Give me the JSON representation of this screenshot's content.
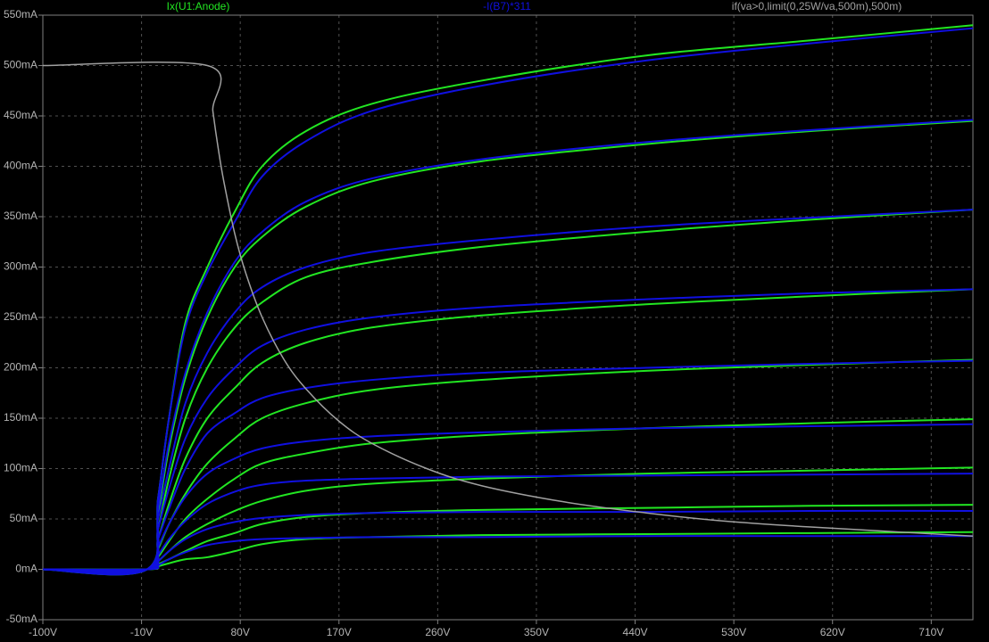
{
  "chart_data": {
    "type": "line",
    "x": [
      -100,
      -5,
      5,
      15,
      30,
      50,
      75,
      100,
      140,
      200,
      300,
      450,
      600,
      748
    ],
    "series": [
      {
        "name": "Ix(U1:Anode)",
        "color": "#22e622",
        "curves": [
          [
            0,
            0,
            70,
            150,
            245,
            300,
            355,
            400,
            435,
            462,
            485,
            510,
            525,
            540
          ],
          [
            0,
            0,
            55,
            120,
            190,
            250,
            300,
            330,
            360,
            385,
            405,
            422,
            435,
            445
          ],
          [
            0,
            0,
            40,
            90,
            150,
            200,
            240,
            265,
            290,
            305,
            320,
            335,
            347,
            357
          ],
          [
            0,
            0,
            30,
            65,
            110,
            150,
            180,
            205,
            225,
            240,
            252,
            263,
            271,
            278
          ],
          [
            0,
            0,
            20,
            45,
            75,
            105,
            130,
            150,
            165,
            178,
            188,
            197,
            203,
            208
          ],
          [
            0,
            0,
            12,
            28,
            50,
            70,
            90,
            105,
            115,
            125,
            133,
            140,
            145,
            149
          ],
          [
            0,
            0,
            8,
            18,
            32,
            45,
            58,
            68,
            78,
            85,
            90,
            95,
            98,
            101
          ],
          [
            0,
            0,
            5,
            10,
            18,
            28,
            36,
            45,
            52,
            56,
            59,
            61,
            63,
            64
          ],
          [
            0,
            0,
            3,
            6,
            10,
            12,
            18,
            25,
            30,
            32,
            34,
            35,
            36,
            37
          ]
        ]
      },
      {
        "name": "-I(B7)*311",
        "color": "#1010e0",
        "curves": [
          [
            0,
            0,
            70,
            150,
            240,
            295,
            345,
            390,
            425,
            455,
            480,
            505,
            522,
            537
          ],
          [
            0,
            0,
            60,
            125,
            195,
            255,
            305,
            335,
            365,
            388,
            407,
            424,
            436,
            446
          ],
          [
            0,
            0,
            50,
            100,
            165,
            215,
            255,
            280,
            300,
            315,
            327,
            340,
            349,
            357
          ],
          [
            0,
            0,
            40,
            80,
            130,
            170,
            200,
            222,
            238,
            250,
            260,
            268,
            274,
            278
          ],
          [
            0,
            0,
            30,
            60,
            100,
            135,
            155,
            170,
            180,
            188,
            195,
            200,
            204,
            207
          ],
          [
            0,
            0,
            22,
            45,
            72,
            95,
            110,
            120,
            127,
            132,
            136,
            140,
            142,
            144
          ],
          [
            0,
            0,
            14,
            30,
            48,
            65,
            77,
            84,
            88,
            90,
            92,
            93,
            94,
            95
          ],
          [
            0,
            0,
            8,
            18,
            30,
            40,
            47,
            51,
            54,
            56,
            57,
            57,
            58,
            58
          ],
          [
            0,
            0,
            4,
            10,
            17,
            24,
            28,
            30,
            31,
            32,
            32,
            33,
            33,
            33
          ]
        ]
      },
      {
        "name": "if(va>0,limit(0,25W/va,500m),500m)",
        "color": "#a0a0a0",
        "x": [
          -100,
          50,
          55,
          60,
          65,
          75,
          85,
          100,
          120,
          140,
          170,
          200,
          250,
          300,
          375,
          450,
          520,
          600,
          748
        ],
        "values": [
          500,
          500,
          455,
          417,
          385,
          333,
          294,
          250,
          208,
          179,
          147,
          125,
          100,
          83,
          67,
          56,
          48,
          42,
          33
        ]
      }
    ],
    "xlim": [
      -100,
      748
    ],
    "ylim": [
      -50,
      550
    ],
    "xticks": [
      {
        "value": -100,
        "label": "-100V"
      },
      {
        "value": -10,
        "label": "-10V"
      },
      {
        "value": 80,
        "label": "80V"
      },
      {
        "value": 170,
        "label": "170V"
      },
      {
        "value": 260,
        "label": "260V"
      },
      {
        "value": 350,
        "label": "350V"
      },
      {
        "value": 440,
        "label": "440V"
      },
      {
        "value": 530,
        "label": "530V"
      },
      {
        "value": 620,
        "label": "620V"
      },
      {
        "value": 710,
        "label": "710V"
      }
    ],
    "yticks": [
      {
        "value": -50,
        "label": "-50mA"
      },
      {
        "value": 0,
        "label": "0mA"
      },
      {
        "value": 50,
        "label": "50mA"
      },
      {
        "value": 100,
        "label": "100mA"
      },
      {
        "value": 150,
        "label": "150mA"
      },
      {
        "value": 200,
        "label": "200mA"
      },
      {
        "value": 250,
        "label": "250mA"
      },
      {
        "value": 300,
        "label": "300mA"
      },
      {
        "value": 350,
        "label": "350mA"
      },
      {
        "value": 400,
        "label": "400mA"
      },
      {
        "value": 450,
        "label": "450mA"
      },
      {
        "value": 500,
        "label": "500mA"
      },
      {
        "value": 550,
        "label": "550mA"
      }
    ],
    "grid": true
  }
}
